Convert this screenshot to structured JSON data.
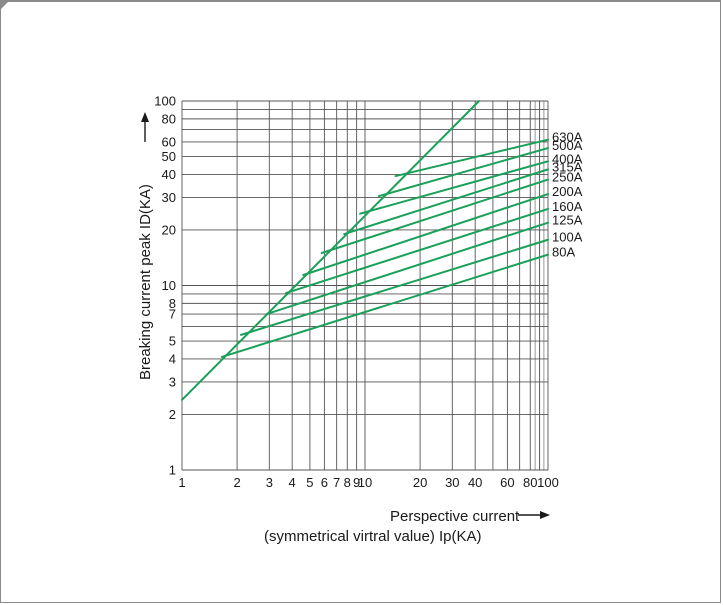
{
  "chart_data": {
    "type": "line",
    "x_scale": "log",
    "y_scale": "log",
    "xlim": [
      1,
      100
    ],
    "ylim": [
      1,
      100
    ],
    "grid": true,
    "xlabel_line1": "Perspective current",
    "xlabel_line2": "(symmetrical virtral value) Ip(KA)",
    "ylabel": "Breaking current peak ID(KA)",
    "x_ticks": [
      {
        "value": 1,
        "label": "1"
      },
      {
        "value": 2,
        "label": "2"
      },
      {
        "value": 3,
        "label": "3"
      },
      {
        "value": 4,
        "label": "4"
      },
      {
        "value": 5,
        "label": "5"
      },
      {
        "value": 6,
        "label": "6"
      },
      {
        "value": 7,
        "label": "7"
      },
      {
        "value": 8,
        "label": "8"
      },
      {
        "value": 9,
        "label": "9"
      },
      {
        "value": 10,
        "label": "10"
      },
      {
        "value": 20,
        "label": "20"
      },
      {
        "value": 30,
        "label": "30"
      },
      {
        "value": 40,
        "label": "40"
      },
      {
        "value": 60,
        "label": "60"
      },
      {
        "value": 80,
        "label": "80"
      },
      {
        "value": 100,
        "label": "100"
      }
    ],
    "y_ticks": [
      {
        "value": 1,
        "label": "1"
      },
      {
        "value": 2,
        "label": "2"
      },
      {
        "value": 3,
        "label": "3"
      },
      {
        "value": 4,
        "label": "4"
      },
      {
        "value": 5,
        "label": "5"
      },
      {
        "value": 7,
        "label": "7"
      },
      {
        "value": 8,
        "label": "8"
      },
      {
        "value": 10,
        "label": "10"
      },
      {
        "value": 20,
        "label": "20"
      },
      {
        "value": 30,
        "label": "30"
      },
      {
        "value": 40,
        "label": "40"
      },
      {
        "value": 50,
        "label": "50"
      },
      {
        "value": 60,
        "label": "60"
      },
      {
        "value": 80,
        "label": "80"
      },
      {
        "value": 100,
        "label": "100"
      }
    ],
    "envelope_line": {
      "points": [
        [
          1,
          2.4
        ],
        [
          42,
          100
        ]
      ]
    },
    "series": [
      {
        "name": "630A",
        "points": [
          [
            14.7,
            39.2
          ],
          [
            100,
            61.7
          ]
        ]
      },
      {
        "name": "500A",
        "points": [
          [
            11.9,
            30.5
          ],
          [
            100,
            55.6
          ]
        ]
      },
      {
        "name": "400A",
        "points": [
          [
            9.4,
            24.5
          ],
          [
            100,
            47.1
          ]
        ]
      },
      {
        "name": "315A",
        "points": [
          [
            7.7,
            19.0
          ],
          [
            100,
            42.6
          ]
        ]
      },
      {
        "name": "250A",
        "points": [
          [
            5.8,
            15.0
          ],
          [
            100,
            37.5
          ]
        ]
      },
      {
        "name": "200A",
        "points": [
          [
            4.6,
            11.4
          ],
          [
            100,
            31.3
          ]
        ]
      },
      {
        "name": "160A",
        "points": [
          [
            3.7,
            9.1
          ],
          [
            100,
            26.0
          ]
        ]
      },
      {
        "name": "125A",
        "points": [
          [
            2.9,
            7.0
          ],
          [
            100,
            21.9
          ]
        ]
      },
      {
        "name": "100A",
        "points": [
          [
            2.1,
            5.4
          ],
          [
            100,
            17.7
          ]
        ]
      },
      {
        "name": "80A",
        "points": [
          [
            1.65,
            4.1
          ],
          [
            100,
            14.7
          ]
        ]
      }
    ],
    "line_color": "#1aa05a",
    "grid_color": "#555555"
  }
}
